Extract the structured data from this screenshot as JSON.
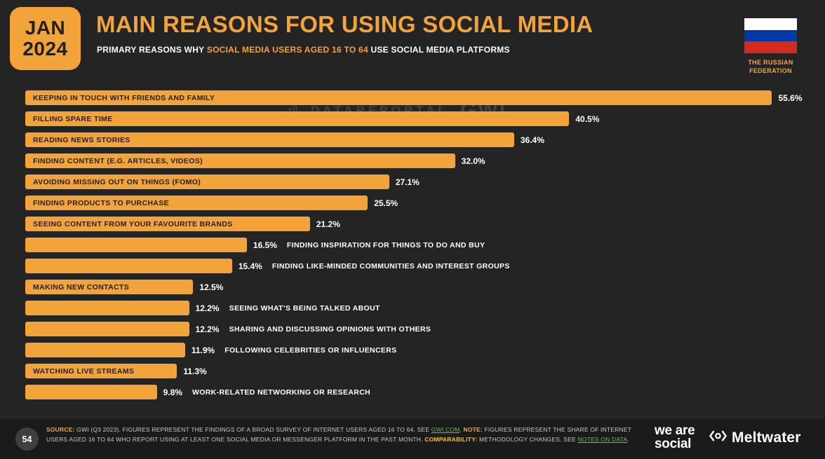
{
  "colors": {
    "accent_orange": "#f2a33a",
    "background": "#242424",
    "footer_background": "#1b1b1b",
    "link_green": "#6fbf4e",
    "flag_white": "#ffffff",
    "flag_blue": "#0039a6",
    "flag_red": "#d52b1e"
  },
  "header": {
    "badge_month": "JAN",
    "badge_year": "2024",
    "title": "MAIN REASONS FOR USING SOCIAL MEDIA",
    "subtitle_prefix": "PRIMARY REASONS WHY ",
    "subtitle_highlight": "SOCIAL MEDIA USERS AGED 16 TO 64",
    "subtitle_suffix": " USE SOCIAL MEDIA PLATFORMS",
    "region_label": "THE RUSSIAN FEDERATION"
  },
  "watermarks": {
    "dataportal": "DATAREPORTAL",
    "gwi": "GWI."
  },
  "chart_data": {
    "type": "bar",
    "orientation": "horizontal",
    "title": "Main reasons for using social media",
    "subtitle": "Primary reasons why social media users aged 16 to 64 use social media platforms",
    "region": "The Russian Federation",
    "unit": "percent",
    "xlim": [
      0,
      58.5
    ],
    "grid": false,
    "legend": false,
    "categories": [
      "KEEPING IN TOUCH WITH FRIENDS AND FAMILY",
      "FILLING SPARE TIME",
      "READING NEWS STORIES",
      "FINDING CONTENT (E.G. ARTICLES, VIDEOS)",
      "AVOIDING MISSING OUT ON THINGS (FOMO)",
      "FINDING PRODUCTS TO PURCHASE",
      "SEEING CONTENT FROM YOUR FAVOURITE BRANDS",
      "FINDING INSPIRATION FOR THINGS TO DO AND BUY",
      "FINDING LIKE-MINDED COMMUNITIES AND INTEREST GROUPS",
      "MAKING NEW CONTACTS",
      "SEEING WHAT’S BEING TALKED ABOUT",
      "SHARING AND DISCUSSING OPINIONS WITH OTHERS",
      "FOLLOWING CELEBRITIES OR INFLUENCERS",
      "WATCHING LIVE STREAMS",
      "WORK-RELATED NETWORKING OR RESEARCH"
    ],
    "values": [
      55.6,
      40.5,
      36.4,
      32.0,
      27.1,
      25.5,
      21.2,
      16.5,
      15.4,
      12.5,
      12.2,
      12.2,
      11.9,
      11.3,
      9.8
    ],
    "value_labels": [
      "55.6%",
      "40.5%",
      "36.4%",
      "32.0%",
      "27.1%",
      "25.5%",
      "21.2%",
      "16.5%",
      "15.4%",
      "12.5%",
      "12.2%",
      "12.2%",
      "11.9%",
      "11.3%",
      "9.8%"
    ],
    "label_position": [
      "inside",
      "inside",
      "inside",
      "inside",
      "inside",
      "inside",
      "inside",
      "outside",
      "outside",
      "inside",
      "outside",
      "outside",
      "outside",
      "inside",
      "outside"
    ]
  },
  "footer": {
    "page_number": "54",
    "source_segments": [
      {
        "text": "SOURCE:",
        "style": "orange"
      },
      {
        "text": " GWI (Q3 2023). FIGURES REPRESENT THE FINDINGS OF A BROAD SURVEY OF INTERNET USERS AGED 16 TO 64. SEE ",
        "style": "plain"
      },
      {
        "text": "GWI.COM",
        "style": "link"
      },
      {
        "text": ". ",
        "style": "plain"
      },
      {
        "text": "NOTE:",
        "style": "orange"
      },
      {
        "text": " FIGURES REPRESENT THE SHARE OF INTERNET USERS AGED 16 TO 64 WHO REPORT USING AT LEAST ONE SOCIAL MEDIA OR MESSENGER PLATFORM IN THE PAST MONTH. ",
        "style": "plain"
      },
      {
        "text": "COMPARABILITY:",
        "style": "yellow"
      },
      {
        "text": " METHODOLOGY CHANGES. SEE ",
        "style": "plain"
      },
      {
        "text": "NOTES ON DATA",
        "style": "link"
      },
      {
        "text": ".",
        "style": "plain"
      }
    ],
    "we_are_social_line1": "we are",
    "we_are_social_line2": "social",
    "meltwater": "Meltwater"
  }
}
